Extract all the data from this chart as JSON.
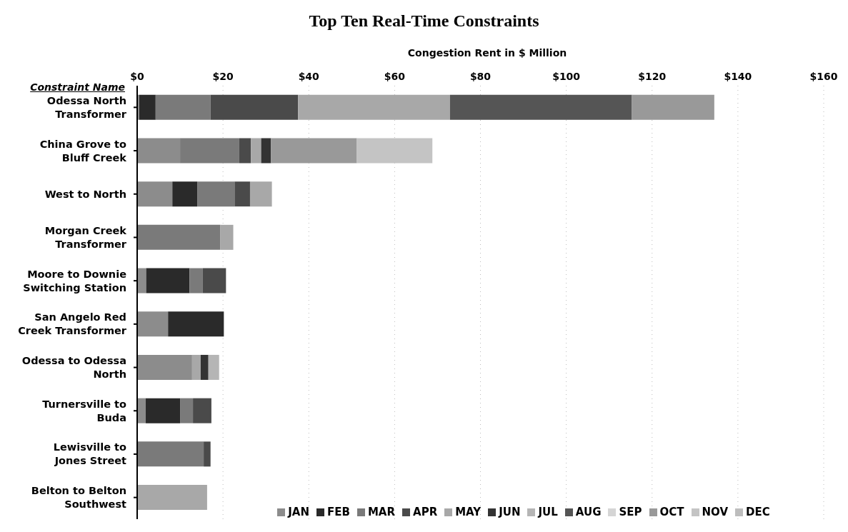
{
  "chart_data": {
    "type": "bar",
    "orientation": "horizontal",
    "stacked": true,
    "title": "Top Ten Real-Time Constraints",
    "xlabel": "Congestion Rent in $ Million",
    "ylabel": "Constraint Name",
    "categories": [
      "Odessa North Transformer",
      "China Grove to Bluff Creek",
      "West to North",
      "Morgan Creek Transformer",
      "Moore to Downie Switching Station",
      "San Angelo Red Creek Transformer",
      "Odessa to Odessa North",
      "Turnersville to Buda",
      "Lewisville to Jones Street",
      "Belton to Belton Southwest"
    ],
    "series": [
      {
        "name": "JAN",
        "color": "#8c8c8c",
        "values": [
          0.5,
          10,
          8.2,
          0,
          2.1,
          7.2,
          12.8,
          2,
          0,
          0
        ]
      },
      {
        "name": "FEB",
        "color": "#2a2a2a",
        "values": [
          3.8,
          0,
          5.8,
          0,
          10.1,
          13,
          0,
          8,
          0,
          0
        ]
      },
      {
        "name": "MAR",
        "color": "#7a7a7a",
        "values": [
          12.8,
          13.8,
          8.7,
          19.4,
          3.1,
          0,
          0,
          3,
          15.5,
          0
        ]
      },
      {
        "name": "APR",
        "color": "#4a4a4a",
        "values": [
          20.4,
          2.7,
          3.6,
          0,
          5.4,
          0,
          0,
          4.3,
          1.6,
          0
        ]
      },
      {
        "name": "MAY",
        "color": "#a8a8a8",
        "values": [
          35.4,
          2.4,
          5.1,
          3,
          0,
          0,
          2,
          0,
          0,
          16.3
        ]
      },
      {
        "name": "JUN",
        "color": "#333333",
        "values": [
          0,
          2.3,
          0,
          0,
          0,
          0,
          1.8,
          0,
          0,
          0
        ]
      },
      {
        "name": "JUL",
        "color": "#b5b5b5",
        "values": [
          0,
          0,
          0,
          0,
          0,
          0,
          2.5,
          0,
          0,
          0
        ]
      },
      {
        "name": "AUG",
        "color": "#555555",
        "values": [
          42.4,
          0,
          0,
          0,
          0,
          0,
          0,
          0,
          0,
          0
        ]
      },
      {
        "name": "SEP",
        "color": "#d5d5d5",
        "values": [
          0,
          0,
          0,
          0,
          0,
          0,
          0,
          0,
          0,
          0
        ]
      },
      {
        "name": "OCT",
        "color": "#999999",
        "values": [
          19.2,
          20,
          0,
          0,
          0,
          0,
          0,
          0,
          0,
          0
        ]
      },
      {
        "name": "NOV",
        "color": "#c4c4c4",
        "values": [
          0,
          17.6,
          0,
          0,
          0,
          0,
          0,
          0,
          0,
          0
        ]
      },
      {
        "name": "DEC",
        "color": "#bdbdbd",
        "values": [
          0,
          0,
          0,
          0,
          0,
          0,
          0,
          0,
          0,
          0
        ]
      }
    ],
    "xlim": [
      0,
      160
    ],
    "xticks": [
      {
        "value": 0,
        "label": "$0"
      },
      {
        "value": 20,
        "label": "$20"
      },
      {
        "value": 40,
        "label": "$40"
      },
      {
        "value": 60,
        "label": "$60"
      },
      {
        "value": 80,
        "label": "$80"
      },
      {
        "value": 100,
        "label": "$100"
      },
      {
        "value": 120,
        "label": "$120"
      },
      {
        "value": 140,
        "label": "$140"
      },
      {
        "value": 160,
        "label": "$160"
      }
    ],
    "grid": "x",
    "legend": "bottom right"
  }
}
